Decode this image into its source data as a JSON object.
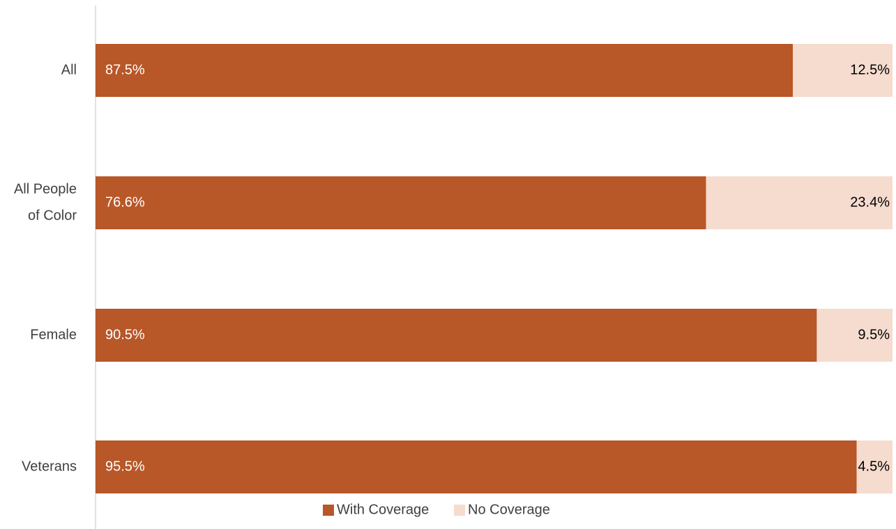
{
  "chart_data": {
    "type": "bar",
    "orientation": "horizontal",
    "stacked": true,
    "categories": [
      "All",
      "All People of Color",
      "Female",
      "Veterans"
    ],
    "category_lines": [
      [
        "All"
      ],
      [
        "All People",
        "of Color"
      ],
      [
        "Female"
      ],
      [
        "Veterans"
      ]
    ],
    "series": [
      {
        "name": "With Coverage",
        "values": [
          87.5,
          76.6,
          90.5,
          95.5
        ],
        "labels": [
          "87.5%",
          "76.6%",
          "90.5%",
          "95.5%"
        ],
        "color": "#b85728"
      },
      {
        "name": "No Coverage",
        "values": [
          12.5,
          23.4,
          9.5,
          4.5
        ],
        "labels": [
          "12.5%",
          "23.4%",
          "9.5%",
          "4.5%"
        ],
        "color": "#f5dccf"
      }
    ],
    "xlim": [
      0,
      100
    ],
    "grid": false,
    "legend_position": "bottom",
    "title": "",
    "xlabel": "",
    "ylabel": "",
    "axis_color": "#d9d9d9",
    "category_label_color": "#404040",
    "inner_label_color_first": "#ffffff",
    "inner_label_color_second": "#000000",
    "legend_text_color": "#404040"
  }
}
